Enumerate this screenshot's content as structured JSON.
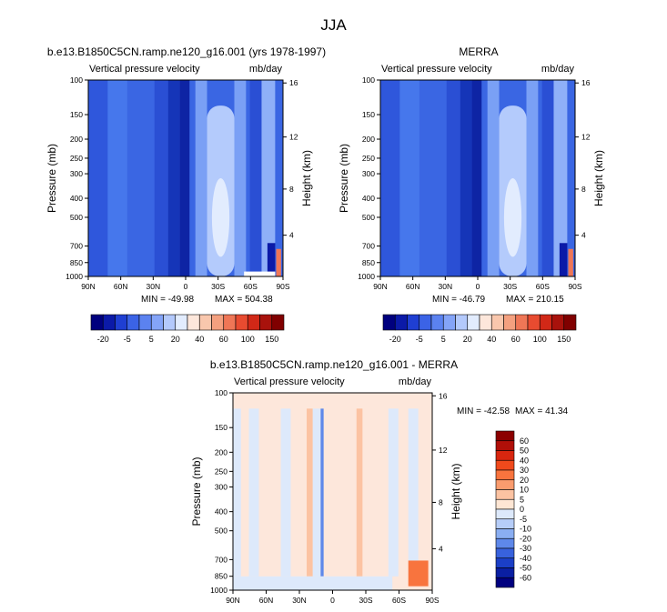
{
  "page_title": "JJA",
  "colors": {
    "panel_fill_a": "#3f6fe8",
    "panel_fill_b": "#aac6ff",
    "diff_fill": "#fde3d0",
    "axis": "#000000"
  },
  "chart_data": [
    {
      "type": "heatmap",
      "id": "model",
      "title": "b.e13.B1850C5CN.ramp.ne120_g16.001 (yrs 1978-1997)",
      "variable": "Vertical pressure velocity",
      "units": "mb/day",
      "xlabel": "",
      "ylabel": "Pressure (mb)",
      "y2label": "Height (km)",
      "x_ticks": [
        "90N",
        "60N",
        "30N",
        "0",
        "30S",
        "60S",
        "90S"
      ],
      "y_ticks": [
        "100",
        "150",
        "200",
        "250",
        "300",
        "400",
        "500",
        "700",
        "850",
        "1000"
      ],
      "y2_ticks": [
        "16",
        "12",
        "8",
        "4"
      ],
      "min_label": "MIN = -49.98",
      "max_label": "MAX = 504.38",
      "min": -49.98,
      "max": 504.38,
      "colorbar_labels": [
        "-20",
        "-5",
        "5",
        "20",
        "40",
        "60",
        "100",
        "150"
      ],
      "colorbar_colors": [
        "#00007e",
        "#0b1aa8",
        "#1f3fd2",
        "#3b63e6",
        "#5b82f0",
        "#84a4f8",
        "#b3c9fc",
        "#e2ecfe",
        "#fde7db",
        "#f9c7ad",
        "#f4a07f",
        "#ef7656",
        "#e84b30",
        "#d12817",
        "#a8120c",
        "#800000"
      ]
    },
    {
      "type": "heatmap",
      "id": "merra",
      "title": "MERRA",
      "variable": "Vertical pressure velocity",
      "units": "mb/day",
      "xlabel": "",
      "ylabel": "Pressure (mb)",
      "y2label": "Height (km)",
      "x_ticks": [
        "90N",
        "60N",
        "30N",
        "0",
        "30S",
        "60S",
        "90S"
      ],
      "y_ticks": [
        "100",
        "150",
        "200",
        "250",
        "300",
        "400",
        "500",
        "700",
        "850",
        "1000"
      ],
      "y2_ticks": [
        "16",
        "12",
        "8",
        "4"
      ],
      "min_label": "MIN = -46.79",
      "max_label": "MAX = 210.15",
      "min": -46.79,
      "max": 210.15,
      "colorbar_labels": [
        "-20",
        "-5",
        "5",
        "20",
        "40",
        "60",
        "100",
        "150"
      ],
      "colorbar_colors": [
        "#00007e",
        "#0b1aa8",
        "#1f3fd2",
        "#3b63e6",
        "#5b82f0",
        "#84a4f8",
        "#b3c9fc",
        "#e2ecfe",
        "#fde7db",
        "#f9c7ad",
        "#f4a07f",
        "#ef7656",
        "#e84b30",
        "#d12817",
        "#a8120c",
        "#800000"
      ]
    },
    {
      "type": "heatmap",
      "id": "diff",
      "title": "b.e13.B1850C5CN.ramp.ne120_g16.001 - MERRA",
      "variable": "Vertical pressure velocity",
      "units": "mb/day",
      "xlabel": "",
      "ylabel": "Pressure (mb)",
      "y2label": "Height (km)",
      "x_ticks": [
        "90N",
        "60N",
        "30N",
        "0",
        "30S",
        "60S",
        "90S"
      ],
      "y_ticks": [
        "100",
        "150",
        "200",
        "250",
        "300",
        "400",
        "500",
        "700",
        "850",
        "1000"
      ],
      "y2_ticks": [
        "16",
        "12",
        "8",
        "4"
      ],
      "min_label": "MIN = -42.58",
      "max_label": "MAX =  41.34",
      "min": -42.58,
      "max": 41.34,
      "colorbar_labels": [
        "60",
        "50",
        "40",
        "30",
        "20",
        "10",
        "5",
        "0",
        "-5",
        "-10",
        "-20",
        "-30",
        "-40",
        "-50",
        "-60"
      ],
      "colorbar_colors": [
        "#8b0000",
        "#b00f08",
        "#d8260f",
        "#f04a1c",
        "#f8743e",
        "#fa9c6e",
        "#fcc3a2",
        "#fee6d4",
        "#dde9fb",
        "#b6cdf8",
        "#8aaef2",
        "#5e88ea",
        "#3862dd",
        "#1b3fc7",
        "#0a1fa3",
        "#00007f"
      ]
    }
  ]
}
